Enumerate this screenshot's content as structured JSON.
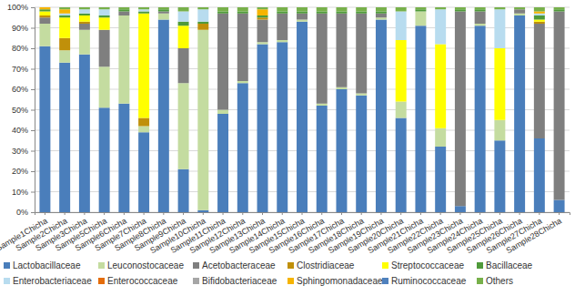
{
  "chart_data": {
    "type": "bar",
    "stacked": true,
    "grid": true,
    "legend": "bottom",
    "categories": [
      "Sample1Chicha",
      "Sample2Chicha",
      "Sample3Chicha",
      "Sample5Chicha",
      "Sample6Chicha",
      "Sample7Chicha",
      "Sample8Chicha",
      "Sample9Chicha",
      "Sample10Chicha",
      "Sample11Chicha",
      "Sample12Chicha",
      "Sample13Chicha",
      "Sample14Chicha",
      "Sample15Chicha",
      "Sample16Chicha",
      "Sample17Chicha",
      "Sample18Chicha",
      "Sample19Chicha",
      "Sample20Chicha",
      "Sample21Chicha",
      "Sample22Chicha",
      "Sample23Chicha",
      "Sample24Chicha",
      "Sample25Chicha",
      "Sample26Chicha",
      "Sample27Chicha",
      "Sample28Chicha"
    ],
    "ylim": [
      0,
      100
    ],
    "yticks": [
      {
        "value": 0,
        "label": "0%"
      },
      {
        "value": 10,
        "label": "10%"
      },
      {
        "value": 20,
        "label": "20%"
      },
      {
        "value": 30,
        "label": "30%"
      },
      {
        "value": 40,
        "label": "40%"
      },
      {
        "value": 50,
        "label": "50%"
      },
      {
        "value": 60,
        "label": "60%"
      },
      {
        "value": 70,
        "label": "70%"
      },
      {
        "value": 80,
        "label": "80%"
      },
      {
        "value": 90,
        "label": "90%"
      },
      {
        "value": 100,
        "label": "100%"
      }
    ],
    "series": [
      {
        "name": "Lactobacillaceae",
        "color": "#4a7ebb",
        "values": [
          81,
          73,
          77,
          51,
          53,
          39,
          94,
          21,
          1,
          48,
          63,
          82,
          83,
          93,
          52,
          60,
          57,
          94,
          46,
          91,
          32,
          3,
          91,
          35,
          96,
          36,
          6
        ]
      },
      {
        "name": "Leuconostocaceae",
        "color": "#c4dca0",
        "values": [
          11,
          6,
          12,
          20,
          43,
          3,
          3,
          42,
          88,
          2,
          1,
          1,
          1,
          1,
          1,
          1,
          1,
          1,
          8,
          7,
          9,
          0,
          1,
          10,
          1,
          0,
          0
        ]
      },
      {
        "name": "Acetobacteraceae",
        "color": "#7f7f7f",
        "values": [
          3,
          0,
          3,
          18,
          2,
          0,
          1,
          17,
          0,
          47,
          33,
          11,
          13,
          3,
          44,
          36,
          39,
          2,
          0,
          0,
          0,
          95,
          6,
          0,
          2,
          56,
          92
        ]
      },
      {
        "name": "Clostridiaceae",
        "color": "#c0900a",
        "values": [
          1,
          6,
          1,
          0,
          0,
          4,
          0,
          0,
          3,
          0,
          0,
          1,
          0,
          0,
          0,
          0,
          0,
          0,
          0,
          0,
          0,
          0,
          0,
          0,
          0,
          1,
          0
        ]
      },
      {
        "name": "Streptococcaceae",
        "color": "#ffff00",
        "values": [
          2,
          10,
          3,
          6,
          0,
          51,
          0,
          11,
          0,
          0,
          0,
          0,
          0,
          0,
          0,
          0,
          0,
          0,
          30,
          0,
          41,
          0,
          0,
          35,
          0,
          1,
          0
        ]
      },
      {
        "name": "Bacillaceae",
        "color": "#4f9a3a",
        "values": [
          1,
          1,
          1,
          1,
          1,
          1,
          1,
          2,
          1,
          1,
          1,
          1,
          1,
          1,
          1,
          1,
          1,
          1,
          0,
          1,
          0,
          1,
          1,
          0,
          0,
          2,
          1
        ]
      },
      {
        "name": "Enterobacteriaceae",
        "color": "#b8dcef",
        "values": [
          0,
          1,
          2,
          3,
          0,
          1,
          0,
          5,
          6,
          0,
          0,
          0,
          0,
          0,
          0,
          0,
          0,
          0,
          14,
          0,
          17,
          0,
          0,
          19,
          0,
          1,
          0
        ]
      },
      {
        "name": "Enterococcaceae",
        "color": "#e46c0a",
        "values": [
          0,
          0,
          0,
          0,
          0,
          0,
          0,
          0,
          0,
          0,
          0,
          0,
          0,
          0,
          0,
          0,
          0,
          0,
          0,
          0,
          0,
          0,
          0,
          0,
          0,
          0,
          0
        ]
      },
      {
        "name": "Bifidobacteriaceae",
        "color": "#a6a6a6",
        "values": [
          0,
          0,
          0,
          0,
          0,
          0,
          0,
          0,
          0,
          0,
          0,
          0,
          0,
          0,
          0,
          0,
          0,
          0,
          0,
          0,
          0,
          0,
          0,
          0,
          0,
          0,
          0
        ]
      },
      {
        "name": "Sphingomonadaceae",
        "color": "#f6b400",
        "values": [
          1,
          2,
          0,
          0,
          0,
          0,
          0,
          0,
          0,
          0,
          0,
          3,
          0,
          0,
          0,
          0,
          0,
          0,
          0,
          0,
          0,
          0,
          0,
          0,
          0,
          1,
          0
        ]
      },
      {
        "name": "Ruminococcaceae",
        "color": "#4f81bd",
        "values": [
          0,
          0,
          0,
          0,
          0,
          0,
          0,
          0,
          0,
          0,
          0,
          0,
          0,
          0,
          0,
          0,
          0,
          0,
          0,
          0,
          0,
          0,
          0,
          0,
          0,
          0,
          0
        ]
      },
      {
        "name": "Others",
        "color": "#77b04a",
        "values": [
          0,
          1,
          1,
          1,
          1,
          1,
          1,
          2,
          1,
          2,
          2,
          1,
          2,
          2,
          2,
          2,
          2,
          2,
          2,
          1,
          1,
          1,
          1,
          1,
          1,
          2,
          1
        ]
      }
    ]
  }
}
